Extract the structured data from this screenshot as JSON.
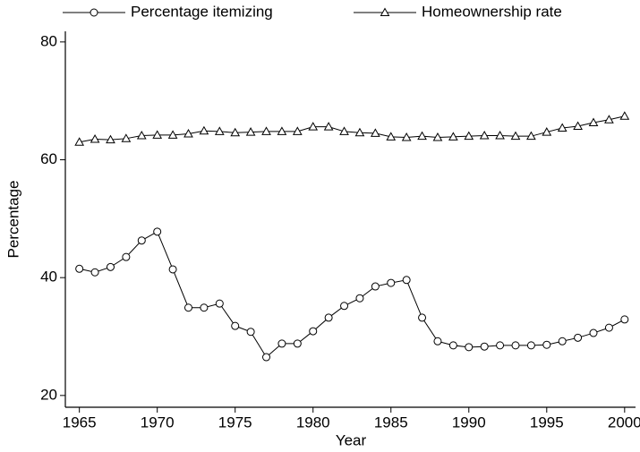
{
  "chart_data": {
    "type": "line",
    "x_label": "Year",
    "y_label": "Percentage",
    "x": [
      1965,
      1966,
      1967,
      1968,
      1969,
      1970,
      1971,
      1972,
      1973,
      1974,
      1975,
      1976,
      1977,
      1978,
      1979,
      1980,
      1981,
      1982,
      1983,
      1984,
      1985,
      1986,
      1987,
      1988,
      1989,
      1990,
      1991,
      1992,
      1993,
      1994,
      1995,
      1996,
      1997,
      1998,
      1999,
      2000
    ],
    "series": [
      {
        "name": "Percentage itemizing",
        "color": "#000000",
        "marker": "circle",
        "values": [
          41.5,
          40.9,
          41.8,
          43.5,
          46.3,
          47.8,
          41.4,
          34.9,
          34.9,
          35.6,
          31.8,
          30.8,
          26.5,
          28.8,
          28.8,
          30.9,
          33.2,
          35.2,
          36.5,
          38.5,
          39.1,
          39.6,
          33.2,
          29.2,
          28.5,
          28.2,
          28.3,
          28.5,
          28.5,
          28.5,
          28.6,
          29.2,
          29.8,
          30.6,
          31.5,
          32.9
        ]
      },
      {
        "name": "Homeownership rate",
        "color": "#000000",
        "marker": "triangle",
        "values": [
          63.0,
          63.5,
          63.4,
          63.6,
          64.1,
          64.2,
          64.2,
          64.4,
          64.9,
          64.8,
          64.6,
          64.7,
          64.8,
          64.8,
          64.8,
          65.6,
          65.6,
          64.8,
          64.6,
          64.5,
          63.9,
          63.8,
          64.0,
          63.8,
          63.9,
          64.0,
          64.1,
          64.1,
          64.0,
          64.0,
          64.7,
          65.4,
          65.7,
          66.3,
          66.8,
          67.4
        ]
      }
    ],
    "xlim": [
      1964.1,
      2000.7
    ],
    "ylim": [
      18,
      81.8
    ],
    "xticks": [
      1965,
      1970,
      1975,
      1980,
      1985,
      1990,
      1995,
      2000
    ],
    "yticks": [
      20,
      40,
      60,
      80
    ],
    "grid": false,
    "legend": "top"
  }
}
